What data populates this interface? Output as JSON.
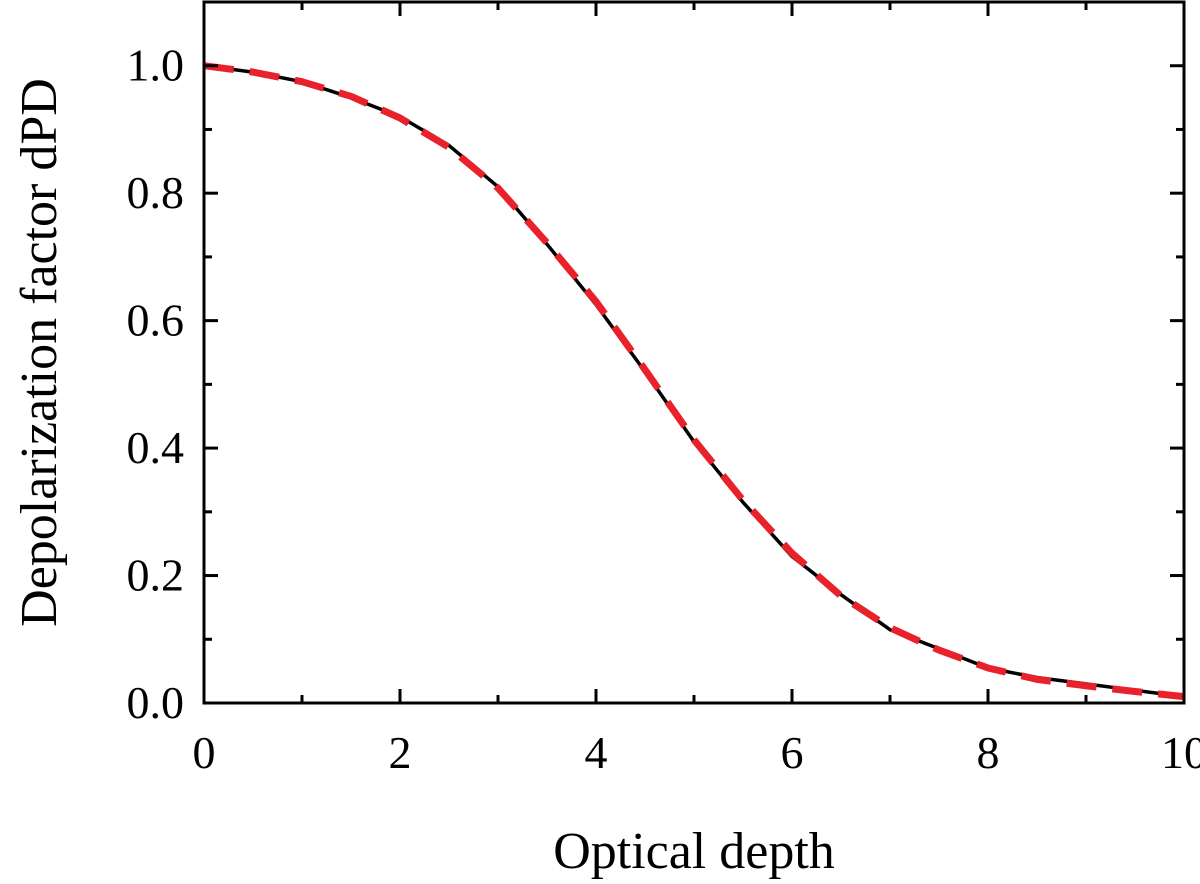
{
  "chart_data": {
    "type": "line",
    "xlabel": "Optical depth",
    "ylabel": "Depolarization factor dPD",
    "xlim": [
      0,
      10
    ],
    "ylim": [
      0,
      1.1
    ],
    "xticks": [
      0,
      2,
      4,
      6,
      8,
      10
    ],
    "xtick_labels": [
      "0",
      "2",
      "4",
      "6",
      "8",
      "10"
    ],
    "yticks": [
      0,
      0.2,
      0.4,
      0.6,
      0.8,
      1.0
    ],
    "ytick_labels": [
      "0.0",
      "0.2",
      "0.4",
      "0.6",
      "0.8",
      "1.0"
    ],
    "grid": false,
    "series": [
      {
        "style": "solid",
        "color": "#000000",
        "x": [
          0,
          0.5,
          1,
          1.5,
          2,
          2.5,
          3,
          3.5,
          4,
          4.5,
          5,
          5.5,
          6,
          6.5,
          7,
          7.5,
          8,
          8.5,
          9,
          9.5,
          10
        ],
        "y": [
          1.0,
          0.99,
          0.975,
          0.95,
          0.92,
          0.875,
          0.81,
          0.72,
          0.625,
          0.52,
          0.41,
          0.315,
          0.23,
          0.17,
          0.115,
          0.085,
          0.055,
          0.04,
          0.03,
          0.02,
          0.01
        ]
      },
      {
        "style": "dashed",
        "color": "#e8212b",
        "x": [
          0,
          0.5,
          1,
          1.5,
          2,
          2.5,
          3,
          3.5,
          4,
          4.5,
          5,
          5.5,
          6,
          6.5,
          7,
          7.5,
          8,
          8.5,
          9,
          9.5,
          10
        ],
        "y": [
          1.0,
          0.99,
          0.975,
          0.952,
          0.918,
          0.872,
          0.808,
          0.722,
          0.63,
          0.523,
          0.413,
          0.318,
          0.235,
          0.168,
          0.118,
          0.083,
          0.055,
          0.037,
          0.027,
          0.018,
          0.01
        ]
      }
    ]
  }
}
